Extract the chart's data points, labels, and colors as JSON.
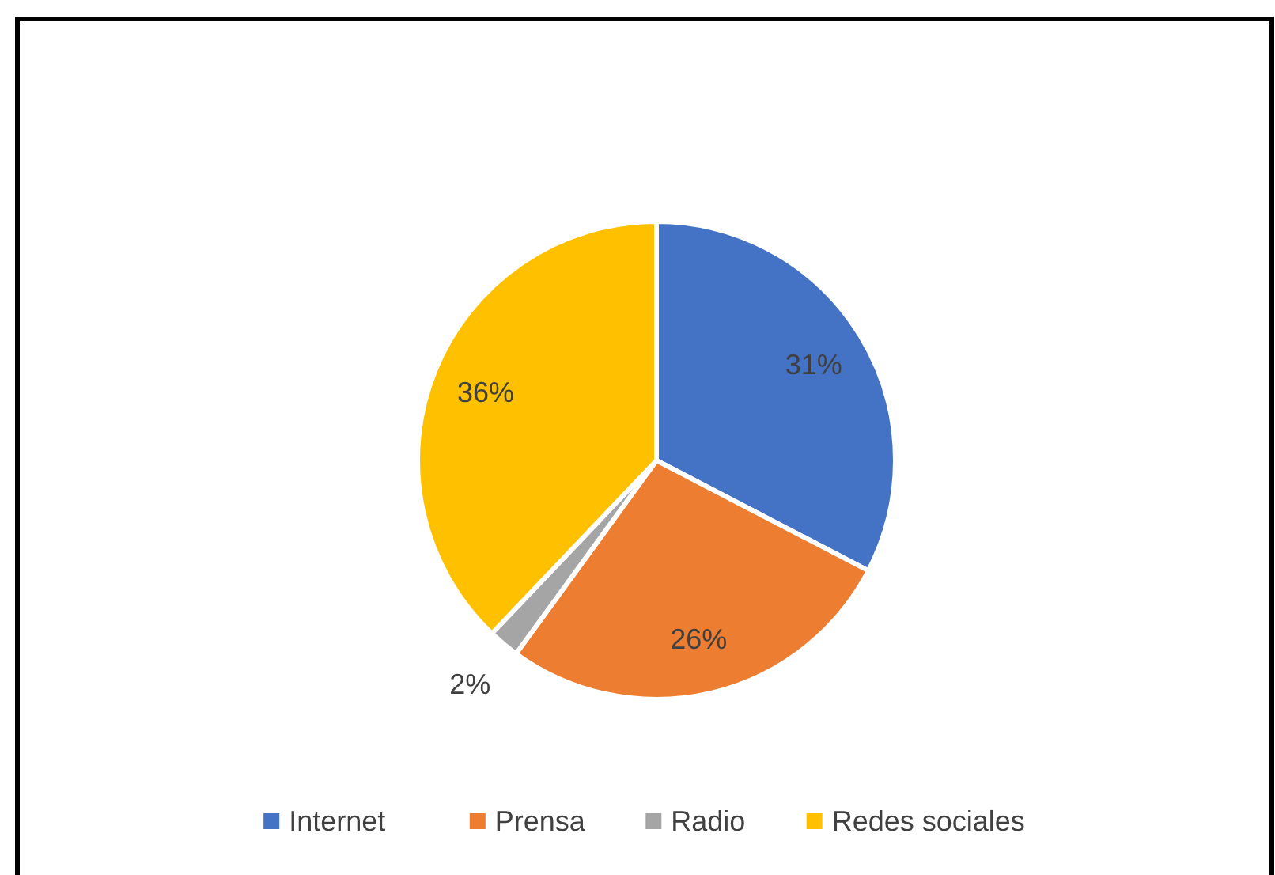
{
  "chart_data": {
    "type": "pie",
    "categories": [
      "Internet",
      "Prensa",
      "Radio",
      "Redes sociales"
    ],
    "values": [
      31,
      26,
      2,
      36
    ],
    "colors": [
      "#4472c4",
      "#ed7d31",
      "#a5a5a5",
      "#ffc000"
    ],
    "value_labels": [
      "31%",
      "26%",
      "2%",
      "36%"
    ],
    "legend": "bottom"
  }
}
